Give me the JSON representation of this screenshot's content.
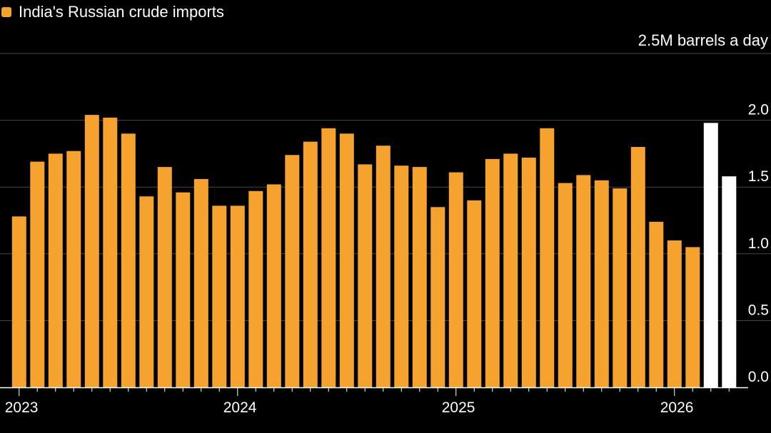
{
  "legend": {
    "label": "India's Russian crude imports",
    "color": "#f5a22f"
  },
  "highlight_color": "#ffffff",
  "chart_data": {
    "type": "bar",
    "title": "India's Russian crude imports",
    "unit_label": "2.5M barrels a day",
    "ylim": [
      0,
      2.5
    ],
    "yticks": [
      {
        "value": 2.0,
        "label": "2.0"
      },
      {
        "value": 1.5,
        "label": "1.5"
      },
      {
        "value": 1.0,
        "label": "1.0"
      },
      {
        "value": 0.5,
        "label": "0.5"
      },
      {
        "value": 0.0,
        "label": "0.0"
      }
    ],
    "x_tick_labels": [
      {
        "index": 0,
        "label": "2023"
      },
      {
        "index": 12,
        "label": "2024"
      },
      {
        "index": 24,
        "label": "2025"
      },
      {
        "index": 36,
        "label": "2026"
      }
    ],
    "categories": [
      "2023-01",
      "2023-02",
      "2023-03",
      "2023-04",
      "2023-05",
      "2023-06",
      "2023-07",
      "2023-08",
      "2023-09",
      "2023-10",
      "2023-11",
      "2023-12",
      "2024-01",
      "2024-02",
      "2024-03",
      "2024-04",
      "2024-05",
      "2024-06",
      "2024-07",
      "2024-08",
      "2024-09",
      "2024-10",
      "2024-11",
      "2024-12",
      "2025-01",
      "2025-02",
      "2025-03",
      "2025-04",
      "2025-05",
      "2025-06",
      "2025-07",
      "2025-08",
      "2025-09",
      "2025-10",
      "2025-11",
      "2025-12",
      "2026-01",
      "2026-02",
      "2026-03",
      "2026-04"
    ],
    "values": [
      1.28,
      1.69,
      1.75,
      1.77,
      2.04,
      2.02,
      1.9,
      1.43,
      1.65,
      1.46,
      1.56,
      1.36,
      1.36,
      1.47,
      1.52,
      1.74,
      1.84,
      1.94,
      1.9,
      1.67,
      1.81,
      1.66,
      1.65,
      1.35,
      1.61,
      1.4,
      1.71,
      1.75,
      1.72,
      1.94,
      1.53,
      1.59,
      1.55,
      1.49,
      1.8,
      1.24,
      1.1,
      1.05,
      1.98,
      1.58
    ],
    "highlighted_indices": [
      38,
      39
    ]
  }
}
